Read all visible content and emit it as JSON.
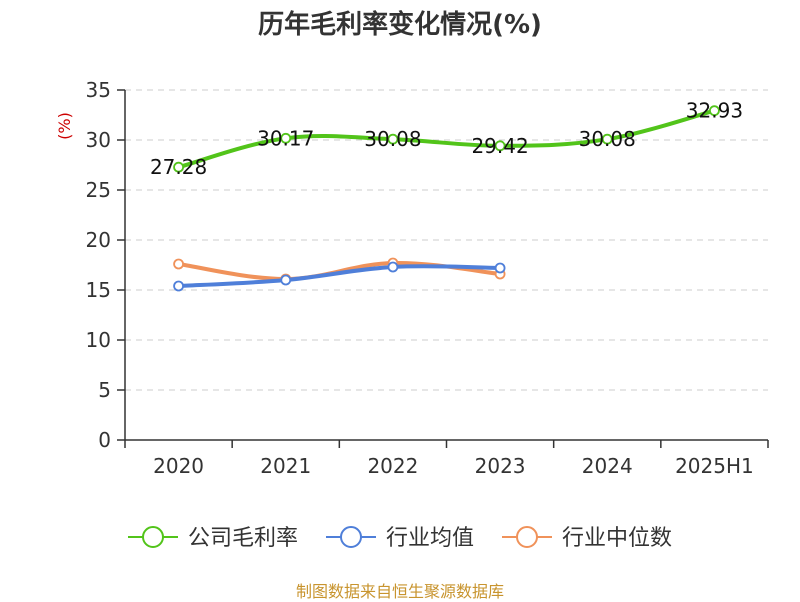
{
  "chart_data": {
    "type": "line",
    "title": "历年毛利率变化情况(%)",
    "ylabel": "(%)",
    "xlabel": "",
    "categories": [
      "2020",
      "2021",
      "2022",
      "2023",
      "2024",
      "2025H1"
    ],
    "ylim": [
      0,
      35
    ],
    "yticks": [
      0,
      5,
      10,
      15,
      20,
      25,
      30,
      35
    ],
    "grid": true,
    "legend_position": "bottom",
    "series": [
      {
        "name": "公司毛利率",
        "color": "#52c41a",
        "values": [
          27.28,
          30.17,
          30.08,
          29.42,
          30.08,
          32.93
        ],
        "labels": [
          "27.28",
          "30.17",
          "30.08",
          "29.42",
          "30.08",
          "32.93"
        ],
        "show_labels": true
      },
      {
        "name": "行业均值",
        "color": "#4f7fd9",
        "values": [
          15.4,
          16.0,
          17.3,
          17.2,
          null,
          null
        ],
        "show_labels": false
      },
      {
        "name": "行业中位数",
        "color": "#f0925a",
        "values": [
          17.6,
          16.1,
          17.7,
          16.6,
          null,
          null
        ],
        "show_labels": false
      }
    ]
  },
  "footer": {
    "source": "制图数据来自恒生聚源数据库"
  }
}
